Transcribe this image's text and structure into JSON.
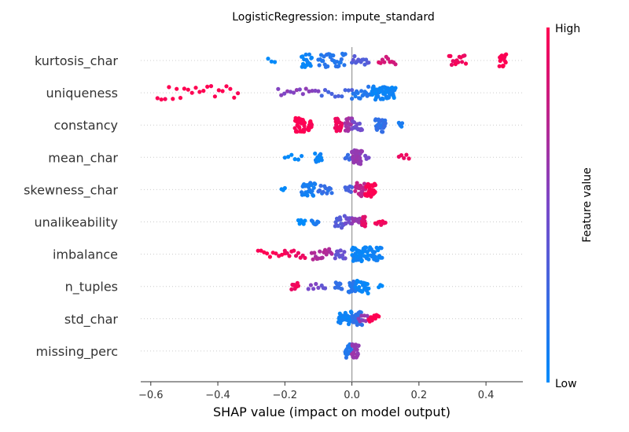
{
  "chart_data": {
    "type": "scatter",
    "subtype": "shap-beeswarm",
    "title": "LogisticRegression: impute_standard",
    "xlabel": "SHAP value (impact on model output)",
    "xlim": [
      -0.63,
      0.51
    ],
    "xticks": [
      -0.6,
      -0.4,
      -0.2,
      0.0,
      0.2,
      0.4
    ],
    "xtick_labels": [
      "−0.6",
      "−0.4",
      "−0.2",
      "0.0",
      "0.2",
      "0.4"
    ],
    "zero_line": 0.0,
    "colorbar": {
      "title": "Feature value",
      "high_label": "High",
      "low_label": "Low",
      "low_color": "#008bfb",
      "high_color": "#ff0051"
    },
    "features": [
      {
        "name": "kurtosis_char",
        "clusters": [
          [
            -0.25,
            -0.23,
            3,
            0.0
          ],
          [
            -0.15,
            -0.12,
            22,
            0.05
          ],
          [
            -0.1,
            -0.02,
            30,
            0.15
          ],
          [
            0.0,
            0.05,
            14,
            0.35
          ],
          [
            0.08,
            0.13,
            10,
            0.85
          ],
          [
            0.29,
            0.34,
            14,
            0.95
          ],
          [
            0.44,
            0.46,
            18,
            1.0
          ]
        ]
      },
      {
        "name": "uniqueness",
        "clusters": [
          [
            -0.58,
            -0.34,
            22,
            1.0
          ],
          [
            -0.22,
            -0.1,
            14,
            0.55
          ],
          [
            -0.09,
            0.0,
            10,
            0.3
          ],
          [
            0.0,
            0.06,
            18,
            0.15
          ],
          [
            0.06,
            0.11,
            45,
            0.05
          ],
          [
            0.11,
            0.13,
            15,
            0.05
          ]
        ]
      },
      {
        "name": "constancy",
        "clusters": [
          [
            -0.17,
            -0.14,
            30,
            1.0
          ],
          [
            -0.13,
            -0.12,
            15,
            1.0
          ],
          [
            -0.05,
            -0.03,
            20,
            0.95
          ],
          [
            -0.02,
            0.0,
            20,
            0.65
          ],
          [
            0.0,
            0.03,
            14,
            0.45
          ],
          [
            0.07,
            0.1,
            26,
            0.2
          ],
          [
            0.14,
            0.15,
            6,
            0.1
          ]
        ]
      },
      {
        "name": "mean_char",
        "clusters": [
          [
            -0.2,
            -0.15,
            6,
            0.0
          ],
          [
            -0.11,
            -0.09,
            12,
            0.05
          ],
          [
            -0.02,
            0.0,
            6,
            0.25
          ],
          [
            0.0,
            0.03,
            36,
            0.6
          ],
          [
            0.04,
            0.05,
            4,
            0.5
          ],
          [
            0.14,
            0.17,
            5,
            0.95
          ]
        ]
      },
      {
        "name": "skewness_char",
        "clusters": [
          [
            -0.21,
            -0.2,
            3,
            0.0
          ],
          [
            -0.15,
            -0.11,
            24,
            0.1
          ],
          [
            -0.1,
            -0.06,
            12,
            0.2
          ],
          [
            -0.02,
            0.0,
            8,
            0.3
          ],
          [
            0.01,
            0.04,
            24,
            0.75
          ],
          [
            0.04,
            0.07,
            38,
            1.0
          ]
        ]
      },
      {
        "name": "unalikeability",
        "clusters": [
          [
            -0.16,
            -0.14,
            6,
            0.0
          ],
          [
            -0.12,
            -0.1,
            8,
            0.1
          ],
          [
            -0.05,
            -0.02,
            18,
            0.35
          ],
          [
            -0.02,
            0.0,
            10,
            0.45
          ],
          [
            0.0,
            0.03,
            14,
            0.6
          ],
          [
            0.03,
            0.04,
            16,
            0.9
          ],
          [
            0.07,
            0.1,
            8,
            0.95
          ]
        ]
      },
      {
        "name": "imbalance",
        "clusters": [
          [
            -0.28,
            -0.2,
            10,
            1.0
          ],
          [
            -0.2,
            -0.14,
            10,
            0.95
          ],
          [
            -0.12,
            -0.06,
            16,
            0.7
          ],
          [
            -0.05,
            -0.02,
            12,
            0.4
          ],
          [
            0.0,
            0.04,
            40,
            0.05
          ],
          [
            0.04,
            0.09,
            26,
            0.05
          ]
        ]
      },
      {
        "name": "n_tuples",
        "clusters": [
          [
            -0.18,
            -0.16,
            9,
            0.95
          ],
          [
            -0.13,
            -0.1,
            5,
            0.5
          ],
          [
            -0.09,
            -0.08,
            3,
            0.4
          ],
          [
            -0.05,
            -0.03,
            10,
            0.2
          ],
          [
            -0.01,
            0.01,
            18,
            0.15
          ],
          [
            0.01,
            0.05,
            22,
            0.05
          ],
          [
            0.08,
            0.09,
            3,
            0.0
          ]
        ]
      },
      {
        "name": "std_char",
        "clusters": [
          [
            -0.04,
            0.0,
            30,
            0.05
          ],
          [
            0.0,
            0.03,
            24,
            0.2
          ],
          [
            0.02,
            0.05,
            8,
            0.6
          ],
          [
            0.05,
            0.08,
            10,
            1.0
          ]
        ]
      },
      {
        "name": "missing_perc",
        "clusters": [
          [
            -0.02,
            0.0,
            20,
            0.15
          ],
          [
            0.0,
            0.02,
            22,
            0.6
          ]
        ]
      }
    ]
  }
}
